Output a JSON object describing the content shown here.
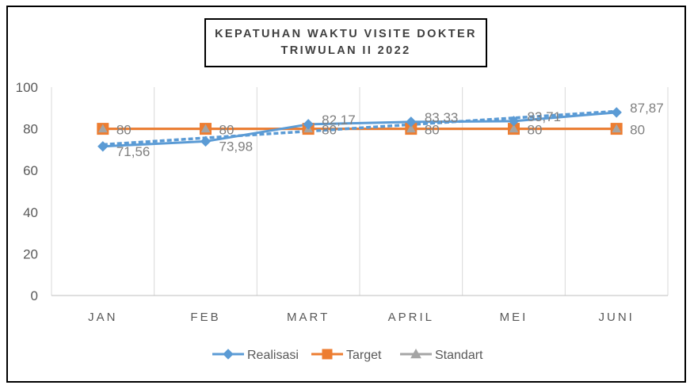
{
  "chart_data": {
    "type": "line",
    "title_lines": [
      "KEPATUHAN WAKTU VISITE DOKTER",
      "TRIWULAN II 2022"
    ],
    "categories": [
      "JAN",
      "FEB",
      "MART",
      "APRIL",
      "MEI",
      "JUNI"
    ],
    "ylim": [
      0,
      100
    ],
    "yticks": [
      "0",
      "20",
      "40",
      "60",
      "80",
      "100"
    ],
    "grid": "vertical",
    "legend_position": "bottom",
    "series": [
      {
        "name": "Realisasi",
        "values": [
          71.56,
          73.98,
          82.17,
          83.33,
          83.71,
          87.87
        ],
        "labels": [
          "71,56",
          "73,98",
          "82,17",
          "83,33",
          "83,71",
          "87,87"
        ],
        "color": "#5b9bd5",
        "marker": "diamond",
        "trendline": true
      },
      {
        "name": "Target",
        "values": [
          80,
          80,
          80,
          80,
          80,
          80
        ],
        "labels": [
          "80",
          "80",
          "80",
          "80",
          "80",
          "80"
        ],
        "color": "#ed7d31",
        "marker": "square"
      },
      {
        "name": "Standart",
        "values": [
          80,
          80,
          80,
          80,
          80,
          80
        ],
        "color": "#a5a5a5",
        "marker": "triangle"
      }
    ]
  }
}
